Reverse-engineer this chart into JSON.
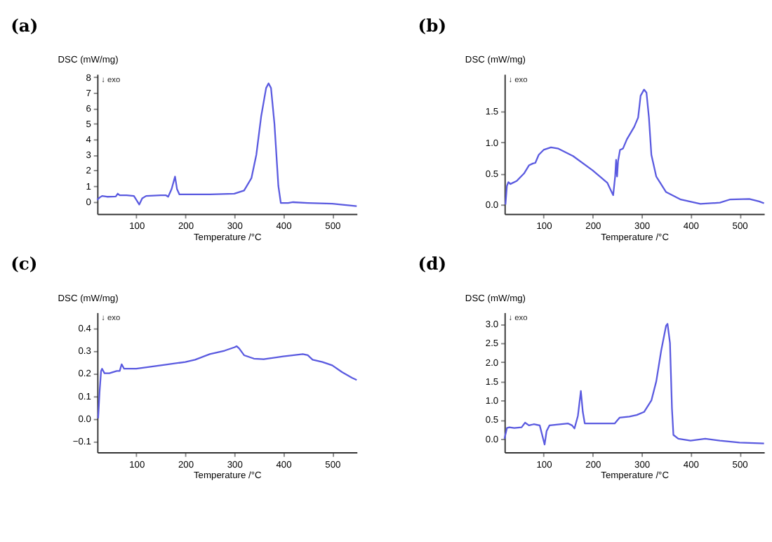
{
  "chart_data": [
    {
      "type": "line",
      "title": "(a)",
      "xlabel": "Temperature /°C",
      "ylabel": "DSC (mW/mg)",
      "annotations": [
        "↓ exo"
      ],
      "grid": false,
      "line_style": "solid",
      "marker": "none",
      "xlim": [
        20,
        550
      ],
      "xticks": [
        100,
        200,
        300,
        400,
        500
      ],
      "ylim": [
        -0.8,
        8.2
      ],
      "yticks": [
        0,
        1,
        2,
        3,
        4,
        5,
        6,
        7,
        8
      ],
      "series": [
        {
          "color": "#5a5ae0",
          "x": [
            20,
            25,
            30,
            40,
            58,
            62,
            66,
            80,
            95,
            100,
            106,
            112,
            120,
            150,
            160,
            165,
            172,
            179,
            183,
            188,
            250,
            300,
            320,
            335,
            345,
            355,
            365,
            370,
            375,
            382,
            390,
            395,
            410,
            420,
            450,
            500,
            550
          ],
          "values": [
            0.1,
            0.25,
            0.35,
            0.3,
            0.32,
            0.5,
            0.4,
            0.4,
            0.35,
            0.1,
            -0.2,
            0.2,
            0.35,
            0.4,
            0.4,
            0.3,
            0.8,
            1.6,
            0.8,
            0.45,
            0.45,
            0.5,
            0.7,
            1.5,
            3,
            5.5,
            7.3,
            7.6,
            7.3,
            5,
            1,
            -0.1,
            -0.1,
            -0.05,
            -0.1,
            -0.15,
            -0.3
          ]
        }
      ]
    },
    {
      "type": "line",
      "title": "(b)",
      "xlabel": "Temperature /°C",
      "ylabel": "DSC (mW/mg)",
      "annotations": [
        "↓ exo"
      ],
      "grid": false,
      "line_style": "solid",
      "marker": "none",
      "xlim": [
        20,
        550
      ],
      "xticks": [
        100,
        200,
        300,
        400,
        500
      ],
      "ylim": [
        -0.15,
        2.1
      ],
      "yticks": [
        {
          "value": 0,
          "label": "0.0"
        },
        0.5,
        {
          "value": 1,
          "label": "1.0"
        },
        1.5
      ],
      "series": [
        {
          "color": "#5a5ae0",
          "x": [
            22,
            25,
            28,
            32,
            45,
            60,
            70,
            78,
            83,
            90,
            100,
            115,
            130,
            160,
            200,
            230,
            236,
            242,
            246,
            248,
            250,
            252,
            256,
            262,
            270,
            285,
            293,
            298,
            305,
            310,
            315,
            320,
            330,
            350,
            380,
            420,
            460,
            480,
            520,
            540,
            550
          ],
          "values": [
            0.0,
            0.3,
            0.36,
            0.33,
            0.38,
            0.5,
            0.63,
            0.66,
            0.67,
            0.8,
            0.88,
            0.92,
            0.9,
            0.78,
            0.55,
            0.35,
            0.25,
            0.15,
            0.45,
            0.72,
            0.45,
            0.7,
            0.88,
            0.9,
            1.05,
            1.25,
            1.4,
            1.75,
            1.85,
            1.8,
            1.4,
            0.8,
            0.45,
            0.2,
            0.08,
            0.01,
            0.03,
            0.08,
            0.09,
            0.05,
            0.02
          ]
        }
      ]
    },
    {
      "type": "line",
      "title": "(c)",
      "xlabel": "Temperature /°C",
      "ylabel": "DSC (mW/mg)",
      "annotations": [
        "↓ exo"
      ],
      "grid": false,
      "line_style": "solid",
      "marker": "none",
      "xlim": [
        20,
        550
      ],
      "xticks": [
        100,
        200,
        300,
        400,
        500
      ],
      "ylim": [
        -0.15,
        0.47
      ],
      "yticks": [
        -0.1,
        {
          "value": 0,
          "label": "0.0"
        },
        0.1,
        0.2,
        0.3,
        0.4
      ],
      "series": [
        {
          "color": "#5a5ae0",
          "x": [
            22,
            25,
            28,
            30,
            35,
            45,
            60,
            66,
            70,
            75,
            80,
            100,
            150,
            200,
            220,
            250,
            280,
            300,
            305,
            310,
            320,
            340,
            360,
            400,
            440,
            450,
            460,
            480,
            500,
            520,
            540,
            550
          ],
          "values": [
            0.0,
            0.12,
            0.21,
            0.22,
            0.2,
            0.2,
            0.21,
            0.21,
            0.24,
            0.22,
            0.22,
            0.22,
            0.235,
            0.25,
            0.26,
            0.285,
            0.3,
            0.315,
            0.32,
            0.31,
            0.28,
            0.265,
            0.262,
            0.275,
            0.285,
            0.28,
            0.26,
            0.25,
            0.235,
            0.205,
            0.18,
            0.17
          ]
        }
      ]
    },
    {
      "type": "line",
      "title": "(d)",
      "xlabel": "Temperature /°C",
      "ylabel": "DSC (mW/mg)",
      "annotations": [
        "↓ exo"
      ],
      "grid": false,
      "line_style": "solid",
      "marker": "none",
      "xlim": [
        20,
        550
      ],
      "xticks": [
        100,
        200,
        300,
        400,
        500
      ],
      "ylim": [
        -0.35,
        3.3
      ],
      "yticks": [
        {
          "value": 0,
          "label": "0.0"
        },
        0.5,
        {
          "value": 1,
          "label": "1.0"
        },
        1.5,
        {
          "value": 2,
          "label": "2.0"
        },
        2.5,
        {
          "value": 3,
          "label": "3.0"
        }
      ],
      "series": [
        {
          "color": "#5a5ae0",
          "x": [
            20,
            25,
            30,
            40,
            55,
            62,
            70,
            80,
            92,
            97,
            102,
            106,
            112,
            150,
            158,
            163,
            170,
            176,
            180,
            184,
            200,
            240,
            245,
            255,
            275,
            290,
            305,
            320,
            330,
            340,
            350,
            353,
            358,
            362,
            365,
            375,
            400,
            430,
            460,
            500,
            550
          ],
          "values": [
            0.0,
            0.28,
            0.3,
            0.28,
            0.3,
            0.42,
            0.35,
            0.38,
            0.35,
            0.1,
            -0.15,
            0.2,
            0.35,
            0.4,
            0.35,
            0.27,
            0.6,
            1.25,
            0.7,
            0.4,
            0.4,
            0.4,
            0.4,
            0.55,
            0.58,
            0.62,
            0.7,
            1.0,
            1.5,
            2.3,
            2.95,
            3.0,
            2.5,
            0.8,
            0.1,
            0.0,
            -0.05,
            0.0,
            -0.05,
            -0.1,
            -0.12
          ]
        }
      ]
    }
  ]
}
